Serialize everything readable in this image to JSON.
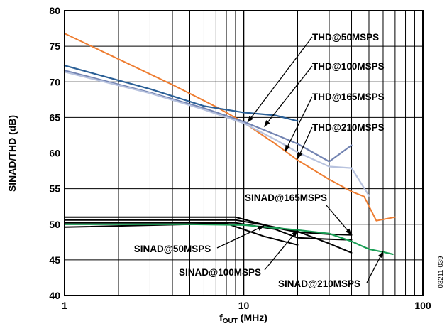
{
  "chart_data": {
    "type": "line",
    "title": "",
    "xlabel_main": "f",
    "xlabel_sub": "OUT",
    "xlabel_unit": " (MHz)",
    "ylabel": "SINAD/THD (dB)",
    "xscale": "log",
    "xlim": [
      1,
      100
    ],
    "ylim": [
      40,
      80
    ],
    "xticks": [
      "1",
      "10",
      "100"
    ],
    "yticks": [
      "40",
      "45",
      "50",
      "55",
      "60",
      "65",
      "70",
      "75",
      "80"
    ],
    "grid": true,
    "figure_code": "03211-039",
    "annotations": [
      {
        "text": "THD@50MSPS",
        "target": [
          10.5,
          64.3
        ]
      },
      {
        "text": "THD@100MSPS",
        "target": [
          13,
          63.7
        ]
      },
      {
        "text": "THD@165MSPS",
        "target": [
          17,
          60.2
        ]
      },
      {
        "text": "THD@210MSPS",
        "target": [
          20,
          59.2
        ]
      },
      {
        "text": "SINAD@165MSPS",
        "target": [
          40,
          48.5
        ]
      },
      {
        "text": "SINAD@50MSPS",
        "target": [
          13,
          49.8
        ]
      },
      {
        "text": "SINAD@100MSPS",
        "target": [
          20,
          49.2
        ]
      },
      {
        "text": "SINAD@210MSPS",
        "target": [
          60,
          46.2
        ]
      }
    ],
    "series": [
      {
        "color": "#ee7d31",
        "width": 2,
        "x": [
          1,
          2,
          4,
          7,
          10,
          15,
          20,
          30,
          40,
          47,
          55,
          70
        ],
        "y": [
          76.8,
          73.2,
          69.6,
          66.5,
          64.3,
          61.3,
          59.0,
          56.3,
          54.6,
          53.9,
          50.5,
          51.0
        ]
      },
      {
        "color": "#2a5f96",
        "width": 2.2,
        "x": [
          1,
          3,
          6,
          10,
          15,
          20
        ],
        "y": [
          72.3,
          69.0,
          66.6,
          65.7,
          65.3,
          64.5
        ]
      },
      {
        "color": "#7384b2",
        "width": 2.2,
        "x": [
          1,
          3,
          6,
          10,
          15,
          20,
          30,
          40
        ],
        "y": [
          71.6,
          68.5,
          66.3,
          64.4,
          62.6,
          61.3,
          58.8,
          61.1
        ]
      },
      {
        "color": "#b7c2de",
        "width": 2.2,
        "x": [
          1,
          3,
          6,
          10,
          15,
          20,
          30,
          40,
          50
        ],
        "y": [
          71.4,
          68.4,
          66.1,
          64.2,
          61.9,
          60.1,
          58.1,
          57.9,
          54.0
        ]
      },
      {
        "color": "#000000",
        "width": 2,
        "x": [
          1,
          9,
          15,
          20,
          30,
          40
        ],
        "y": [
          51.0,
          51.0,
          49.5,
          48.9,
          48.6,
          48.5
        ]
      },
      {
        "color": "#000000",
        "width": 2,
        "x": [
          1,
          9,
          13,
          20,
          30,
          40
        ],
        "y": [
          50.6,
          50.6,
          49.9,
          49.0,
          47.3,
          46.0
        ]
      },
      {
        "color": "#000000",
        "width": 2,
        "x": [
          1,
          9,
          15,
          20,
          30,
          40
        ],
        "y": [
          50.2,
          50.2,
          49.3,
          48.1,
          47.9,
          47.8
        ]
      },
      {
        "color": "#000000",
        "width": 2,
        "x": [
          1,
          8,
          13,
          20
        ],
        "y": [
          49.6,
          50.1,
          48.3,
          47.1
        ]
      },
      {
        "color": "#1a9e55",
        "width": 2.2,
        "x": [
          1,
          5,
          10,
          20,
          30,
          40,
          50,
          60,
          68
        ],
        "y": [
          50.0,
          50.0,
          49.9,
          49.2,
          48.7,
          47.6,
          46.5,
          46.1,
          45.8
        ]
      }
    ]
  }
}
